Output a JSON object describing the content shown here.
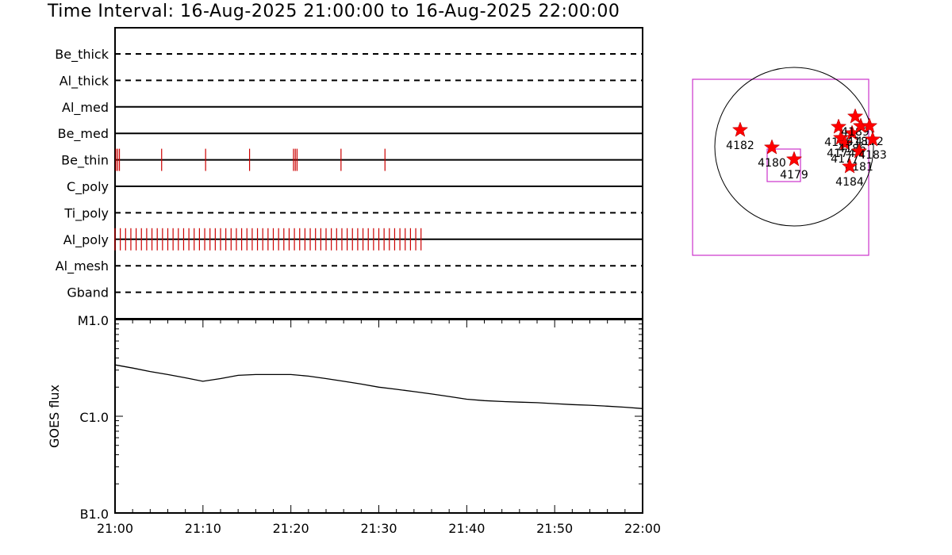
{
  "title": "Time Interval: 16-Aug-2025 21:00:00 to 16-Aug-2025 22:00:00",
  "colors": {
    "event_tick": "#cc0000",
    "map_box": "#cc33cc",
    "star": "#ff0000",
    "line": "#000000"
  },
  "chart_data": [
    {
      "type": "timeline",
      "x_range_minutes": [
        0,
        60
      ],
      "channels": [
        {
          "name": "Be_thick",
          "style": "dashed",
          "events": []
        },
        {
          "name": "Al_thick",
          "style": "dashed",
          "events": []
        },
        {
          "name": "Al_med",
          "style": "solid",
          "events": []
        },
        {
          "name": "Be_med",
          "style": "solid",
          "events": []
        },
        {
          "name": "Be_thin",
          "style": "solid",
          "events": [
            0.1,
            0.3,
            0.5,
            5.3,
            10.3,
            15.3,
            20.3,
            20.5,
            20.7,
            25.7,
            30.7
          ]
        },
        {
          "name": "C_poly",
          "style": "solid",
          "events": []
        },
        {
          "name": "Ti_poly",
          "style": "dashed",
          "events": []
        },
        {
          "name": "Al_poly",
          "style": "solid",
          "events": "dense_0_35"
        },
        {
          "name": "Al_mesh",
          "style": "dashed",
          "events": []
        },
        {
          "name": "Gband",
          "style": "dashed",
          "events": []
        }
      ]
    },
    {
      "type": "line",
      "ylabel": "GOES flux",
      "y_scale": "log",
      "yticks": [
        "M1.0",
        "C1.0",
        "B1.0"
      ],
      "ylim": [
        1e-07,
        1e-05
      ],
      "xticks": [
        "21:00",
        "21:10",
        "21:20",
        "21:30",
        "21:40",
        "21:50",
        "22:00"
      ],
      "x_minutes": [
        0,
        2,
        4,
        6,
        8,
        10,
        12,
        14,
        16,
        18,
        20,
        22,
        24,
        26,
        28,
        30,
        32,
        34,
        36,
        38,
        40,
        42,
        44,
        46,
        48,
        50,
        52,
        54,
        56,
        58,
        60
      ],
      "y_flux": [
        3.4e-06,
        3.15e-06,
        2.9e-06,
        2.7e-06,
        2.5e-06,
        2.3e-06,
        2.45e-06,
        2.65e-06,
        2.7e-06,
        2.7e-06,
        2.7e-06,
        2.6e-06,
        2.45e-06,
        2.3e-06,
        2.15e-06,
        2e-06,
        1.9e-06,
        1.8e-06,
        1.7e-06,
        1.6e-06,
        1.5e-06,
        1.45e-06,
        1.42e-06,
        1.4e-06,
        1.38e-06,
        1.35e-06,
        1.32e-06,
        1.3e-06,
        1.27e-06,
        1.24e-06,
        1.2e-06
      ]
    },
    {
      "type": "scatter",
      "description_note": "",
      "regions": [
        {
          "label": "4182",
          "x": -0.68,
          "y": 0.21
        },
        {
          "label": "4180",
          "x": -0.28,
          "y": -0.01
        },
        {
          "label": "4179",
          "x": 0.0,
          "y": -0.16
        },
        {
          "label": "4185",
          "x": 0.56,
          "y": 0.25
        },
        {
          "label": "4174",
          "x": 0.59,
          "y": 0.11
        },
        {
          "label": "4177",
          "x": 0.64,
          "y": 0.04
        },
        {
          "label": "4186",
          "x": 0.73,
          "y": 0.17
        },
        {
          "label": "4189",
          "x": 0.77,
          "y": 0.38
        },
        {
          "label": "4187",
          "x": 0.84,
          "y": 0.26
        },
        {
          "label": "4172",
          "x": 0.95,
          "y": 0.26
        },
        {
          "label": "4181",
          "x": 0.82,
          "y": -0.06
        },
        {
          "label": "4183",
          "x": 0.99,
          "y": 0.09
        },
        {
          "label": "4184",
          "x": 0.7,
          "y": -0.25
        }
      ]
    }
  ]
}
